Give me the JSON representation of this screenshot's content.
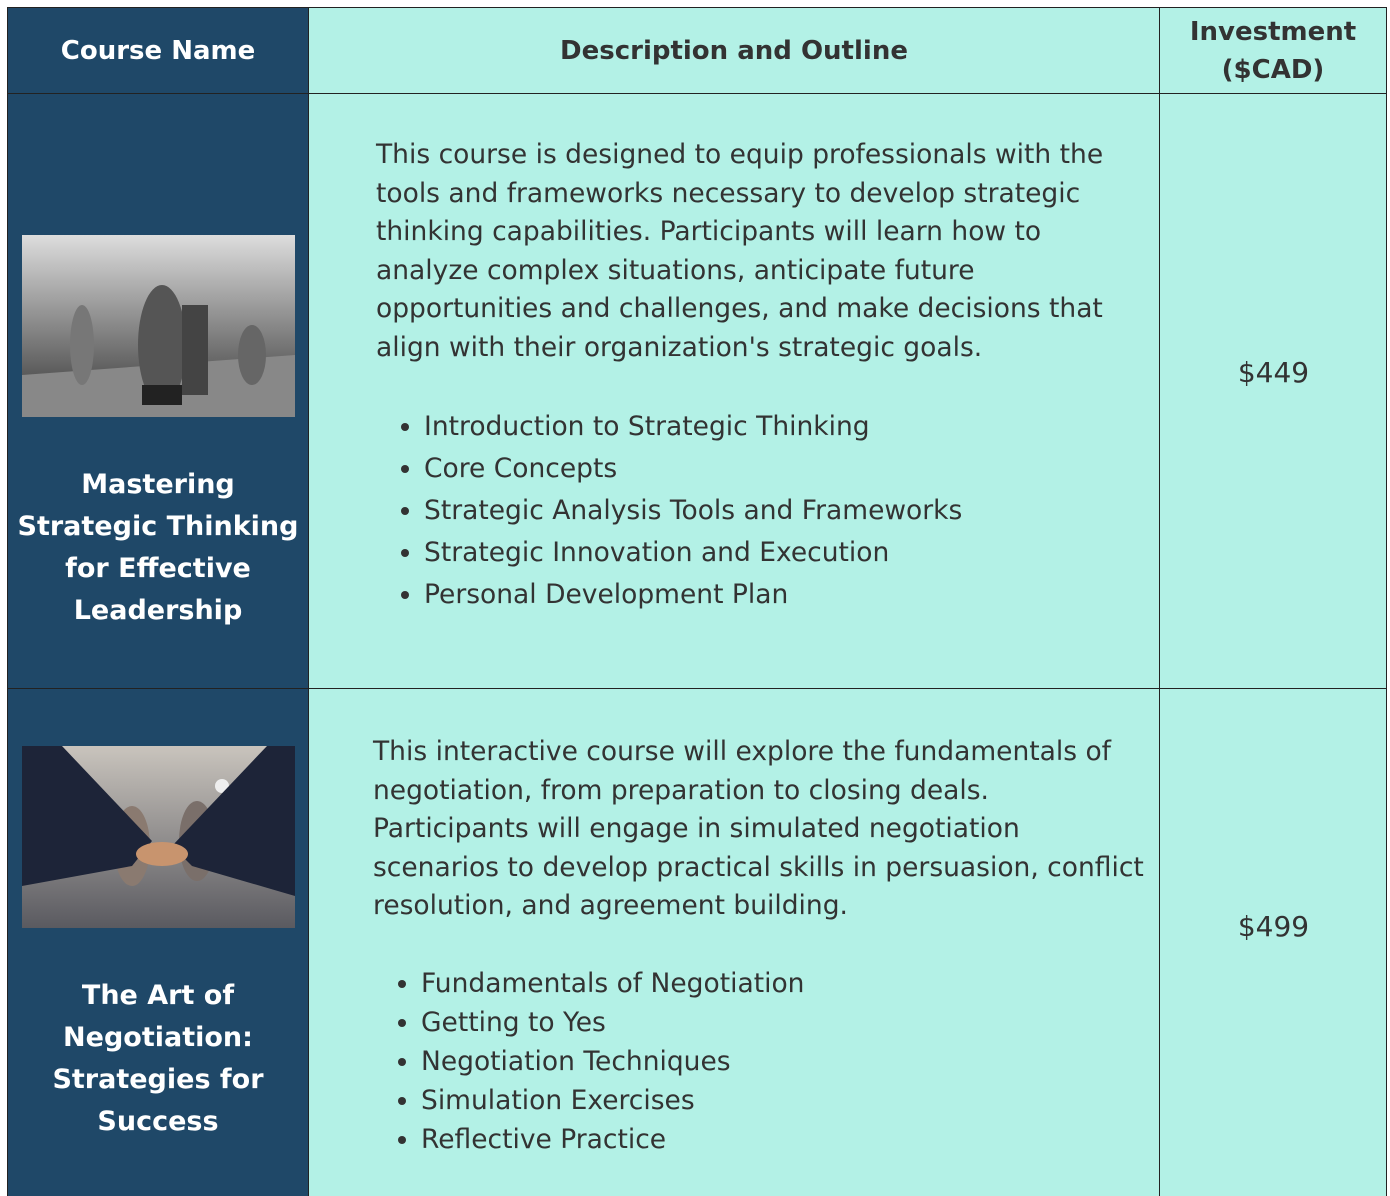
{
  "table": {
    "header": [
      "Course Name",
      "Description and Outline",
      "Investment ($CAD)"
    ],
    "rows": [
      {
        "name": "Mastering Strategic Thinking for Effective Leadership",
        "description": "This course is designed to equip professionals with the tools and frameworks necessary to develop strategic thinking capabilities. Participants will learn how to analyze complex situations, anticipate future opportunities and challenges, and make decisions that align with their organization's strategic goals.",
        "outline": [
          "Introduction to Strategic Thinking",
          "Core Concepts",
          "Strategic Analysis Tools and Frameworks",
          "Strategic Innovation and Execution",
          "Personal Development Plan"
        ],
        "price": "$449"
      },
      {
        "name": "The Art of Negotiation: Strategies for Success",
        "description": "This interactive course will explore the fundamentals of negotiation, from preparation to closing deals. Participants will engage in simulated negotiation scenarios to develop practical skills in persuasion, conflict resolution, and agreement building.",
        "outline": [
          "Fundamentals of Negotiation",
          "Getting to Yes",
          "Negotiation Techniques",
          "Simulation Exercises",
          "Reflective Practice"
        ],
        "price": "$499"
      }
    ]
  }
}
